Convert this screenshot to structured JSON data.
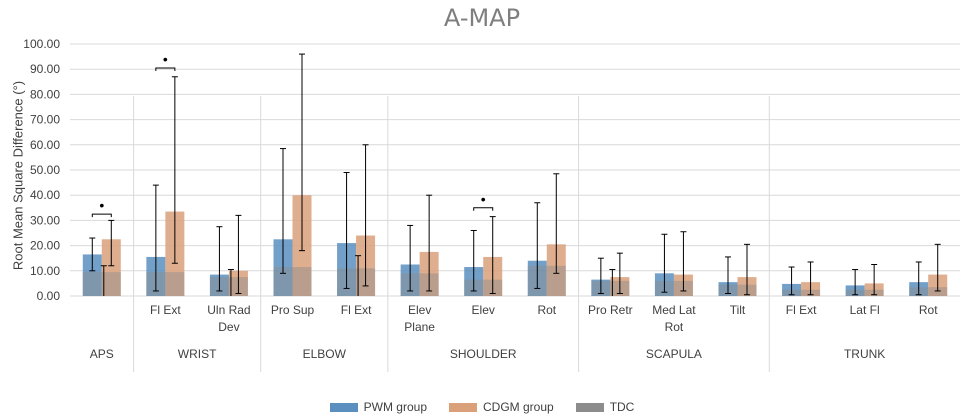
{
  "chart_data": {
    "type": "bar",
    "title": "A-MAP",
    "ylabel": "Root Mean Square Difference (°)",
    "xlabel": "",
    "ylim": [
      0,
      100
    ],
    "yticks": [
      "0.00",
      "10.00",
      "20.00",
      "30.00",
      "40.00",
      "50.00",
      "60.00",
      "70.00",
      "80.00",
      "90.00",
      "100.00"
    ],
    "groups": [
      {
        "label": "APS",
        "categories": [
          ""
        ]
      },
      {
        "label": "WRIST",
        "categories": [
          "Fl Ext",
          "Uln Rad Dev"
        ]
      },
      {
        "label": "ELBOW",
        "categories": [
          "Pro Sup",
          "Fl Ext"
        ]
      },
      {
        "label": "SHOULDER",
        "categories": [
          "Elev Plane",
          "Elev",
          "Rot"
        ]
      },
      {
        "label": "SCAPULA",
        "categories": [
          "Pro Retr",
          "Med Lat Rot",
          "Tilt"
        ]
      },
      {
        "label": "TRUNK",
        "categories": [
          "Fl Ext",
          "Lat Fl",
          "Rot"
        ]
      }
    ],
    "series": [
      {
        "name": "PWM group",
        "color": "#5b8fbf",
        "values": [
          16.5,
          15.5,
          8.5,
          22.5,
          21.0,
          12.5,
          11.5,
          14.0,
          6.5,
          9.0,
          5.5,
          4.8,
          4.2,
          5.5
        ],
        "err_low": [
          10.0,
          2.0,
          2.0,
          9.0,
          3.0,
          2.0,
          2.0,
          3.0,
          1.0,
          1.5,
          1.0,
          0.5,
          0.5,
          0.5
        ],
        "err_high": [
          23.0,
          44.0,
          27.5,
          58.5,
          49.0,
          28.0,
          26.0,
          37.0,
          15.0,
          24.5,
          15.5,
          11.5,
          10.5,
          13.5
        ]
      },
      {
        "name": "CDGM group",
        "color": "#d9a07a",
        "values": [
          22.5,
          33.5,
          10.0,
          40.0,
          24.0,
          17.5,
          15.5,
          20.5,
          7.5,
          8.5,
          7.5,
          5.5,
          5.0,
          8.5
        ],
        "err_low": [
          12.0,
          13.0,
          1.0,
          18.0,
          4.0,
          2.0,
          1.0,
          9.0,
          1.0,
          2.0,
          0.5,
          0.5,
          0.5,
          2.0
        ],
        "err_high": [
          30.0,
          87.0,
          32.0,
          96.0,
          60.0,
          40.0,
          31.5,
          48.5,
          17.0,
          25.5,
          20.5,
          13.5,
          12.5,
          20.5
        ]
      },
      {
        "name": "TDC",
        "color": "#8c8c8c",
        "values": [
          9.5,
          9.5,
          7.5,
          11.5,
          11.0,
          9.0,
          6.5,
          12.0,
          6.0,
          6.0,
          4.5,
          2.5,
          2.5,
          3.5
        ],
        "err_low": [
          null,
          null,
          null,
          null,
          null,
          null,
          null,
          null,
          null,
          null,
          null,
          null,
          null,
          null
        ],
        "err_high": [
          12.0,
          null,
          10.5,
          null,
          16.0,
          null,
          null,
          null,
          10.5,
          null,
          null,
          null,
          null,
          null
        ]
      }
    ],
    "significance": [
      {
        "category_index": 0,
        "label": "•",
        "bracket_at": 32.5
      },
      {
        "category_index": 1,
        "label": "•",
        "bracket_at": 90.5
      },
      {
        "category_index": 6,
        "label": "•",
        "bracket_at": 35.0
      }
    ],
    "legend_position": "bottom-center",
    "grid": true
  }
}
